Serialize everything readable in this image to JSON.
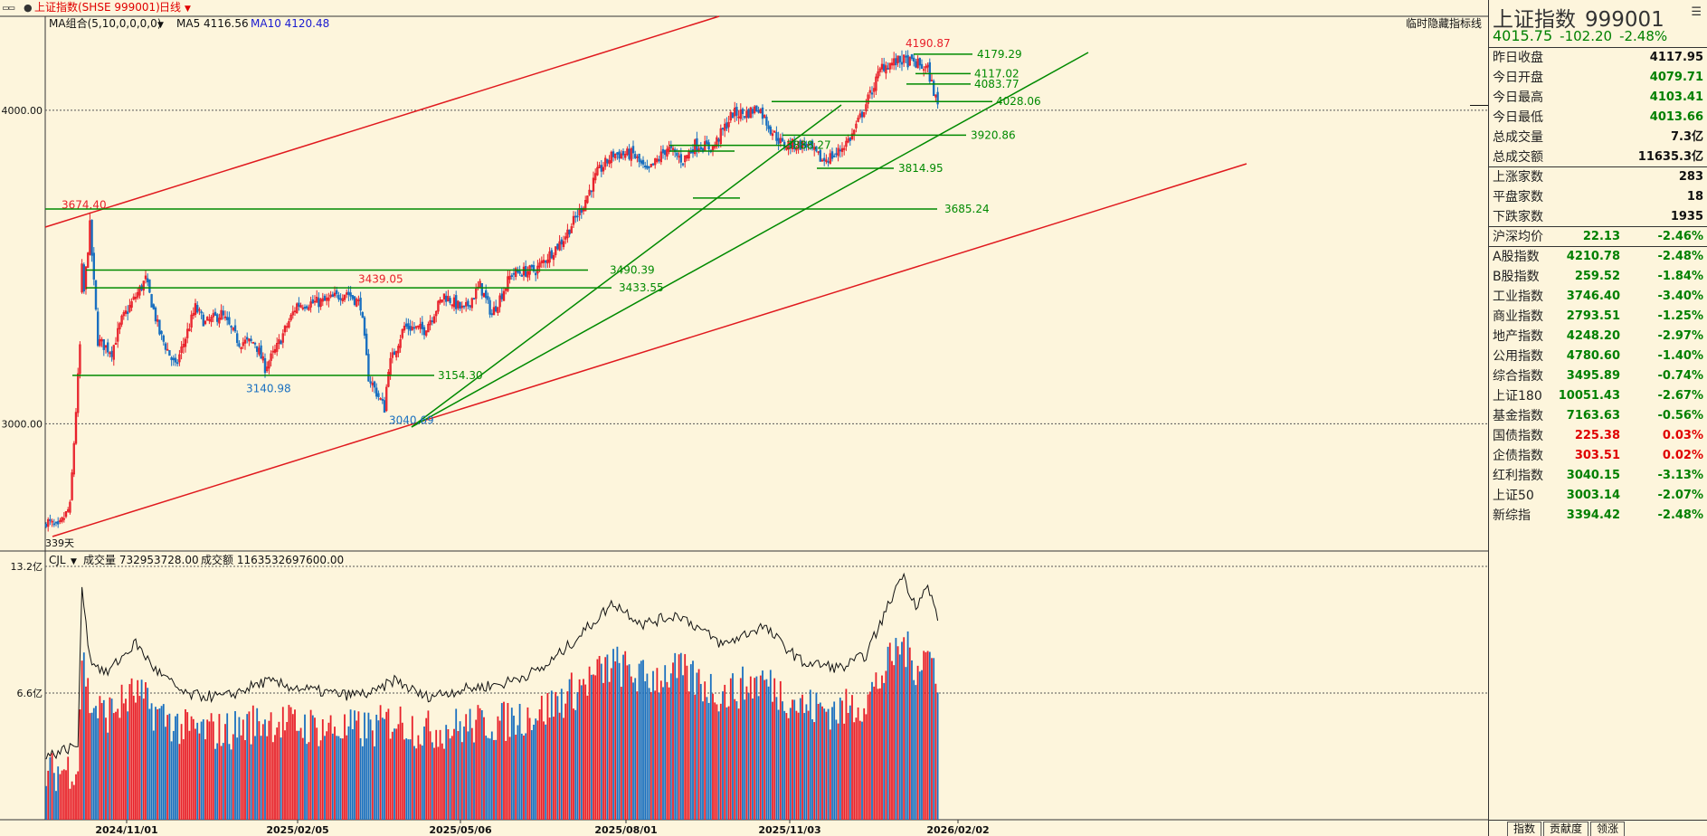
{
  "window": {
    "title": "上证指数(SHSE 999001)",
    "period": "日线"
  },
  "legend": {
    "ma_label": "MA组合(5,10,0,0,0,0)",
    "ma5_label": "MA5 4116.56",
    "ma10_label": "MA10 4120.48",
    "hide_button": "临时隐藏指标线",
    "days_label": "339天"
  },
  "volume_legend": {
    "name": "CJL",
    "vol_label": "成交量 732953728.00",
    "amt_label": "成交额 1163532697600.00"
  },
  "colors": {
    "up": "#e8202a",
    "down": "#1a70c0",
    "trend_red": "#e0191e",
    "trend_green": "#008a00",
    "background": "#fdf5dc"
  },
  "chart_data": {
    "type": "candlestick",
    "price_axis": {
      "ticks": [
        "4000.00",
        "3000.00"
      ],
      "range": [
        2620,
        4300
      ]
    },
    "volume_axis": {
      "ticks": [
        "13.2亿",
        "6.6亿"
      ],
      "range": [
        0,
        13.2
      ]
    },
    "x_ticks": [
      "2024/11/01",
      "2025/02/05",
      "2025/05/06",
      "2025/08/01",
      "2025/11/03",
      "2026/02/02"
    ],
    "price_anchors": [
      [
        0,
        2690
      ],
      [
        6,
        2665
      ],
      [
        12,
        2735
      ],
      [
        18,
        3350
      ],
      [
        22,
        3630
      ],
      [
        26,
        3265
      ],
      [
        33,
        3230
      ],
      [
        38,
        3330
      ],
      [
        50,
        3460
      ],
      [
        57,
        3290
      ],
      [
        65,
        3180
      ],
      [
        75,
        3370
      ],
      [
        80,
        3320
      ],
      [
        88,
        3350
      ],
      [
        97,
        3260
      ],
      [
        105,
        3260
      ],
      [
        110,
        3180
      ],
      [
        115,
        3230
      ],
      [
        126,
        3380
      ],
      [
        140,
        3390
      ],
      [
        151,
        3420
      ],
      [
        158,
        3380
      ],
      [
        162,
        3150
      ],
      [
        170,
        3050
      ],
      [
        172,
        3180
      ],
      [
        180,
        3310
      ],
      [
        190,
        3300
      ],
      [
        200,
        3410
      ],
      [
        210,
        3360
      ],
      [
        218,
        3440
      ],
      [
        224,
        3350
      ],
      [
        234,
        3480
      ],
      [
        246,
        3490
      ],
      [
        260,
        3590
      ],
      [
        270,
        3700
      ],
      [
        277,
        3800
      ],
      [
        285,
        3860
      ],
      [
        295,
        3860
      ],
      [
        302,
        3800
      ],
      [
        312,
        3880
      ],
      [
        320,
        3840
      ],
      [
        326,
        3890
      ],
      [
        335,
        3880
      ],
      [
        345,
        3990
      ],
      [
        352,
        3990
      ],
      [
        358,
        4010
      ],
      [
        364,
        3940
      ],
      [
        370,
        3890
      ],
      [
        382,
        3890
      ],
      [
        390,
        3840
      ],
      [
        397,
        3860
      ],
      [
        405,
        3920
      ],
      [
        412,
        4020
      ],
      [
        420,
        4140
      ],
      [
        430,
        4160
      ],
      [
        437,
        4150
      ],
      [
        443,
        4130
      ],
      [
        448,
        4015
      ]
    ],
    "turnover_anchors": [
      [
        0,
        3.3
      ],
      [
        16,
        3.9
      ],
      [
        18,
        12.3
      ],
      [
        22,
        8.4
      ],
      [
        30,
        7.6
      ],
      [
        45,
        9.2
      ],
      [
        55,
        7.8
      ],
      [
        70,
        6.5
      ],
      [
        90,
        6.4
      ],
      [
        110,
        7.2
      ],
      [
        130,
        6.8
      ],
      [
        150,
        6.5
      ],
      [
        165,
        6.6
      ],
      [
        175,
        7.3
      ],
      [
        190,
        6.4
      ],
      [
        210,
        6.8
      ],
      [
        230,
        7.1
      ],
      [
        250,
        7.9
      ],
      [
        265,
        9.3
      ],
      [
        285,
        11.3
      ],
      [
        300,
        10.2
      ],
      [
        318,
        10.7
      ],
      [
        340,
        9.1
      ],
      [
        360,
        10.1
      ],
      [
        380,
        8.2
      ],
      [
        400,
        7.9
      ],
      [
        412,
        8.6
      ],
      [
        420,
        10.4
      ],
      [
        430,
        12.8
      ],
      [
        437,
        11.2
      ],
      [
        443,
        12.1
      ],
      [
        448,
        10.6
      ]
    ],
    "levels": [
      {
        "label": "3674.40",
        "value": 3674.4,
        "role": "high",
        "color": "#e8202a"
      },
      {
        "label": "3439.05",
        "value": 3439.05,
        "role": "high",
        "color": "#e8202a"
      },
      {
        "label": "3140.98",
        "value": 3140.98,
        "role": "low",
        "color": "#1a70c0"
      },
      {
        "label": "3040.69",
        "value": 3040.69,
        "role": "low",
        "color": "#1a70c0"
      },
      {
        "label": "4190.87",
        "value": 4190.87,
        "role": "high",
        "color": "#e8202a"
      },
      {
        "label": "3685.24",
        "value": 3685.24,
        "role": "line",
        "color": "#008a00"
      },
      {
        "label": "3490.39",
        "value": 3490.39,
        "role": "line",
        "color": "#008a00"
      },
      {
        "label": "3433.55",
        "value": 3433.55,
        "role": "line",
        "color": "#008a00"
      },
      {
        "label": "3154.30",
        "value": 3154.3,
        "role": "line",
        "color": "#008a00"
      },
      {
        "label": "3888.27",
        "value": 3888.27,
        "role": "line",
        "color": "#008a00"
      },
      {
        "label": "3920.86",
        "value": 3920.86,
        "role": "line",
        "color": "#008a00"
      },
      {
        "label": "3814.95",
        "value": 3814.95,
        "role": "line",
        "color": "#008a00"
      },
      {
        "label": "4179.29",
        "value": 4179.29,
        "role": "line",
        "color": "#008a00"
      },
      {
        "label": "4117.02",
        "value": 4117.02,
        "role": "line",
        "color": "#008a00"
      },
      {
        "label": "4083.77",
        "value": 4083.77,
        "role": "line",
        "color": "#008a00"
      },
      {
        "label": "4028.06",
        "value": 4028.06,
        "role": "line",
        "color": "#008a00"
      }
    ]
  },
  "panel": {
    "title": "上证指数",
    "code": "999001",
    "price": "4015.75",
    "change": "-102.20",
    "change_pct": "-2.48%",
    "stats": [
      {
        "label": "昨日收盘",
        "value": "4117.95"
      },
      {
        "label": "今日开盘",
        "value": "4079.71"
      },
      {
        "label": "今日最高",
        "value": "4103.41"
      },
      {
        "label": "今日最低",
        "value": "4013.66"
      },
      {
        "label": "总成交量",
        "value": "7.3亿"
      },
      {
        "label": "总成交额",
        "value": "11635.3亿"
      }
    ],
    "breadth": [
      {
        "label": "上涨家数",
        "value": "283"
      },
      {
        "label": "平盘家数",
        "value": "18"
      },
      {
        "label": "下跌家数",
        "value": "1935"
      }
    ],
    "avg": {
      "label": "沪深均价",
      "value": "22.13",
      "pct": "-2.46%"
    },
    "indices": [
      {
        "label": "A股指数",
        "value": "4210.78",
        "pct": "-2.48%",
        "dir": "down"
      },
      {
        "label": "B股指数",
        "value": "259.52",
        "pct": "-1.84%",
        "dir": "down"
      },
      {
        "label": "工业指数",
        "value": "3746.40",
        "pct": "-3.40%",
        "dir": "down"
      },
      {
        "label": "商业指数",
        "value": "2793.51",
        "pct": "-1.25%",
        "dir": "down"
      },
      {
        "label": "地产指数",
        "value": "4248.20",
        "pct": "-2.97%",
        "dir": "down"
      },
      {
        "label": "公用指数",
        "value": "4780.60",
        "pct": "-1.40%",
        "dir": "down"
      },
      {
        "label": "综合指数",
        "value": "3495.89",
        "pct": "-0.74%",
        "dir": "down"
      },
      {
        "label": "上证180",
        "value": "10051.43",
        "pct": "-2.67%",
        "dir": "down"
      },
      {
        "label": "基金指数",
        "value": "7163.63",
        "pct": "-0.56%",
        "dir": "down"
      },
      {
        "label": "国债指数",
        "value": "225.38",
        "pct": "0.03%",
        "dir": "up"
      },
      {
        "label": "企债指数",
        "value": "303.51",
        "pct": "0.02%",
        "dir": "up"
      },
      {
        "label": "红利指数",
        "value": "3040.15",
        "pct": "-3.13%",
        "dir": "down"
      },
      {
        "label": "上证50",
        "value": "3003.14",
        "pct": "-2.07%",
        "dir": "down"
      },
      {
        "label": "新综指",
        "value": "3394.42",
        "pct": "-2.48%",
        "dir": "down"
      }
    ],
    "tabs": [
      "指数",
      "贡献度",
      "领涨"
    ]
  }
}
